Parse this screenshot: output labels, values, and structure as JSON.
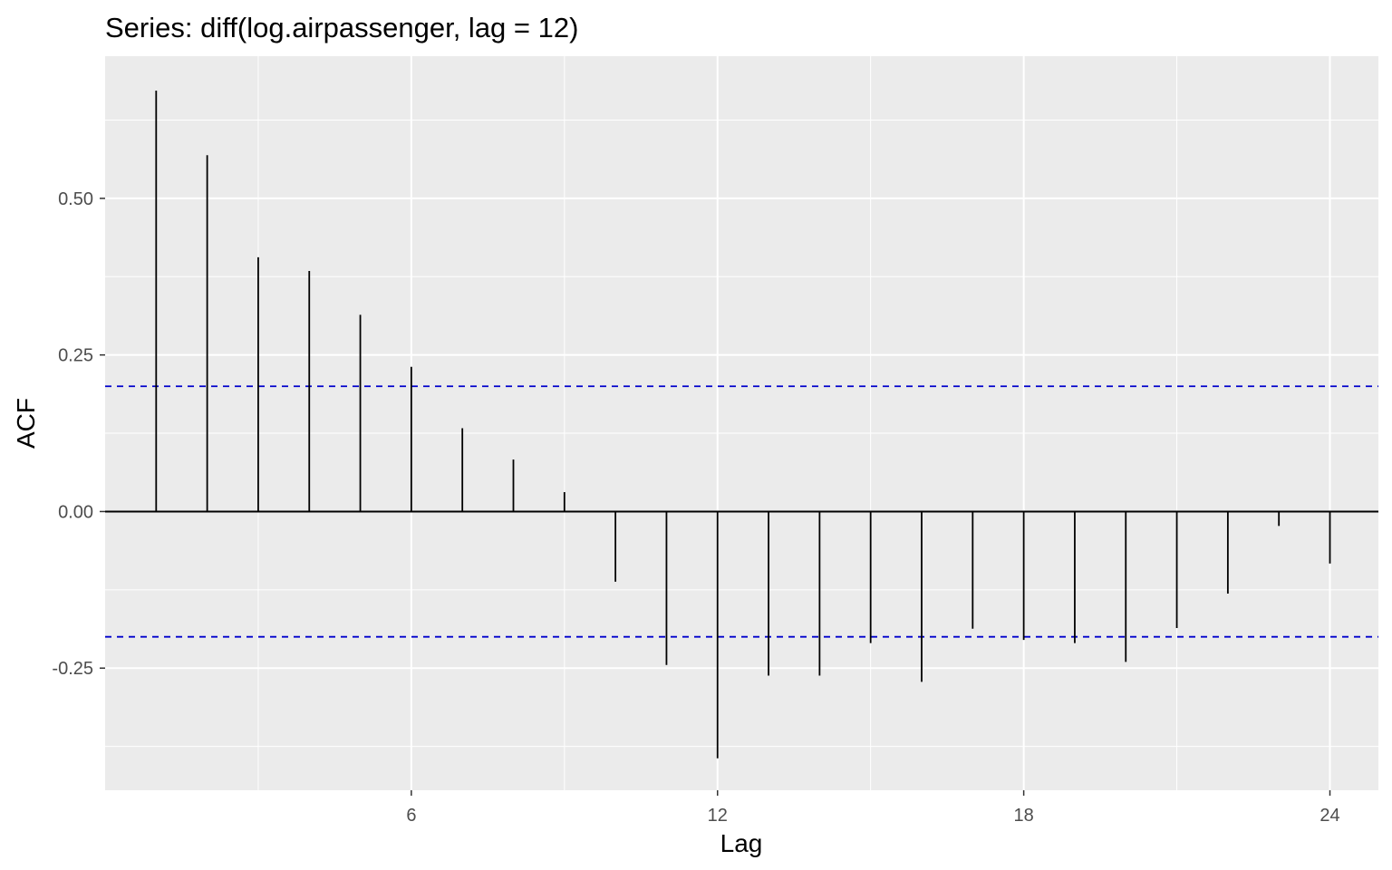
{
  "chart_data": {
    "type": "bar",
    "title": "Series: diff(log.airpassenger, lag = 12)",
    "xlabel": "Lag",
    "ylabel": "ACF",
    "xlim": [
      0,
      24.95
    ],
    "ylim": [
      -0.445,
      0.727
    ],
    "x_ticks": [
      6,
      12,
      18,
      24
    ],
    "x_tick_labels": [
      "6",
      "12",
      "18",
      "24"
    ],
    "x_minor_ticks": [
      3,
      9,
      15,
      21
    ],
    "y_ticks": [
      -0.25,
      0.0,
      0.25,
      0.5
    ],
    "y_tick_labels": [
      "-0.25",
      "0.00",
      "0.25",
      "0.50"
    ],
    "y_minor_ticks": [
      -0.375,
      -0.125,
      0.125,
      0.375,
      0.625
    ],
    "lags": [
      1,
      2,
      3,
      4,
      5,
      6,
      7,
      8,
      9,
      10,
      11,
      12,
      13,
      14,
      15,
      16,
      17,
      18,
      19,
      20,
      21,
      22,
      23,
      24
    ],
    "values": [
      0.672,
      0.569,
      0.406,
      0.384,
      0.314,
      0.231,
      0.133,
      0.083,
      0.031,
      -0.112,
      -0.245,
      -0.394,
      -0.262,
      -0.262,
      -0.21,
      -0.272,
      -0.187,
      -0.205,
      -0.21,
      -0.24,
      -0.186,
      -0.131,
      -0.023,
      -0.083
    ],
    "confidence_bounds": [
      -0.2,
      0.2
    ],
    "colors": {
      "panel_background": "#ebebeb",
      "grid": "#ffffff",
      "bars": "#000000",
      "zero_line": "#000000",
      "confidence": "#0000cc"
    },
    "grid": true,
    "legend": "none"
  }
}
